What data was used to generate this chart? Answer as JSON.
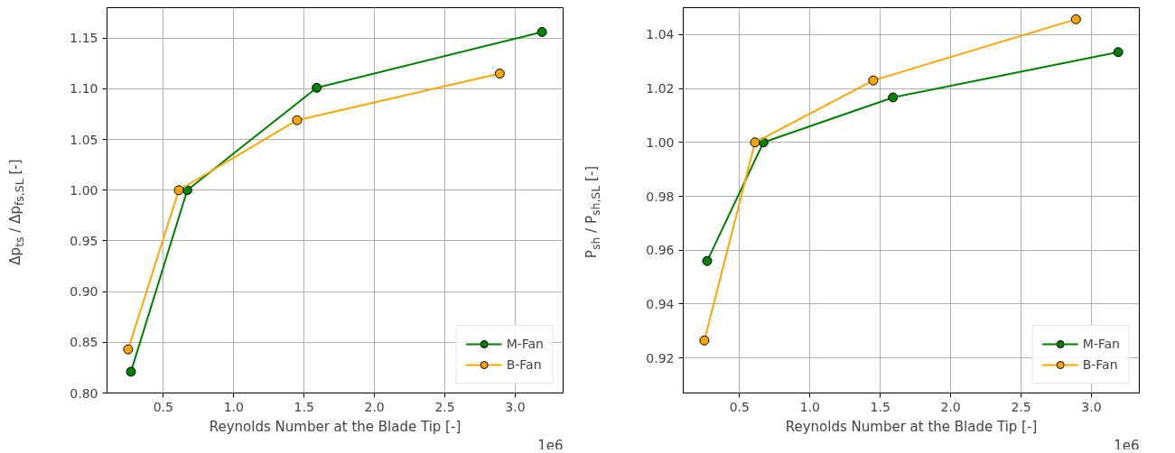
{
  "chart_data": [
    {
      "type": "line",
      "xlabel": "Reynolds Number at the Blade Tip [-]",
      "ylabel": "Δp$_{ts}$ / Δp$_{fs,SL}$ [-]",
      "annotations": [
        "1e6"
      ],
      "xlim": [
        0.1,
        3.34
      ],
      "ylim": [
        0.8,
        1.18
      ],
      "xticks": [
        {
          "value": 0.5,
          "label": "0.5"
        },
        {
          "value": 1.0,
          "label": "1.0"
        },
        {
          "value": 1.5,
          "label": "1.5"
        },
        {
          "value": 2.0,
          "label": "2.0"
        },
        {
          "value": 2.5,
          "label": "2.5"
        },
        {
          "value": 3.0,
          "label": "3.0"
        }
      ],
      "yticks": [
        {
          "value": 0.8,
          "label": "0.80"
        },
        {
          "value": 0.85,
          "label": "0.85"
        },
        {
          "value": 0.9,
          "label": "0.90"
        },
        {
          "value": 0.95,
          "label": "0.95"
        },
        {
          "value": 1.0,
          "label": "1.00"
        },
        {
          "value": 1.05,
          "label": "1.05"
        },
        {
          "value": 1.1,
          "label": "1.10"
        },
        {
          "value": 1.15,
          "label": "1.15"
        }
      ],
      "grid": true,
      "legend": "bottom right",
      "marker": "circle",
      "line_style": "solid",
      "series": [
        {
          "name": "M-Fan",
          "color": "#008000",
          "x": [
            0.27,
            0.67,
            1.59,
            3.19
          ],
          "values": [
            0.821,
            1.0,
            1.101,
            1.156
          ]
        },
        {
          "name": "B-Fan",
          "color": "#ffa500",
          "x": [
            0.25,
            0.61,
            1.45,
            2.89
          ],
          "values": [
            0.843,
            1.0,
            1.069,
            1.115
          ]
        }
      ]
    },
    {
      "type": "line",
      "xlabel": "Reynolds Number at the Blade Tip [-]",
      "ylabel": "P$_{sh}$ / P$_{sh,SL}$ [-]",
      "annotations": [
        "1e6"
      ],
      "xlim": [
        0.1,
        3.34
      ],
      "ylim": [
        0.907,
        1.05
      ],
      "xticks": [
        {
          "value": 0.5,
          "label": "0.5"
        },
        {
          "value": 1.0,
          "label": "1.0"
        },
        {
          "value": 1.5,
          "label": "1.5"
        },
        {
          "value": 2.0,
          "label": "2.0"
        },
        {
          "value": 2.5,
          "label": "2.5"
        },
        {
          "value": 3.0,
          "label": "3.0"
        }
      ],
      "yticks": [
        {
          "value": 0.92,
          "label": "0.92"
        },
        {
          "value": 0.94,
          "label": "0.94"
        },
        {
          "value": 0.96,
          "label": "0.96"
        },
        {
          "value": 0.98,
          "label": "0.98"
        },
        {
          "value": 1.0,
          "label": "1.00"
        },
        {
          "value": 1.02,
          "label": "1.02"
        },
        {
          "value": 1.04,
          "label": "1.04"
        }
      ],
      "grid": true,
      "legend": "bottom right",
      "marker": "circle",
      "line_style": "solid",
      "series": [
        {
          "name": "M-Fan",
          "color": "#008000",
          "x": [
            0.27,
            0.67,
            1.59,
            3.19
          ],
          "values": [
            0.956,
            1.0,
            1.0167,
            1.0335
          ]
        },
        {
          "name": "B-Fan",
          "color": "#ffa500",
          "x": [
            0.25,
            0.61,
            1.45,
            2.89
          ],
          "values": [
            0.9265,
            1.0,
            1.023,
            1.0457
          ]
        }
      ]
    }
  ]
}
